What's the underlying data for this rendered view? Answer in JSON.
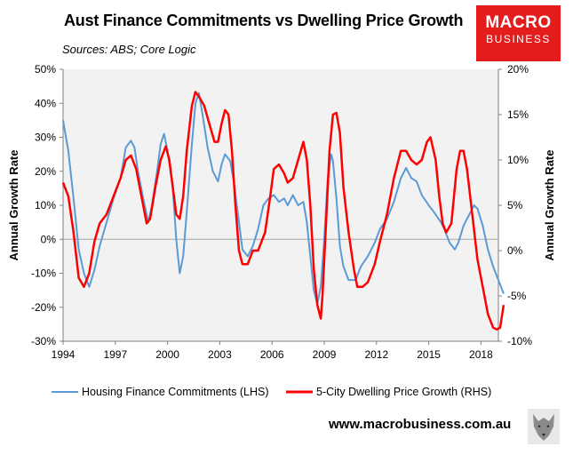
{
  "header": {
    "title": "Aust Finance Commitments vs Dwelling Price Growth",
    "subtitle": "Sources: ABS; Core Logic"
  },
  "logo": {
    "line1": "MACRO",
    "line2": "BUSINESS"
  },
  "footer": {
    "url": "www.macrobusiness.com.au"
  },
  "colors": {
    "finance": "#5b9bd5",
    "prices": "#ff0000",
    "logo_bg": "#e41c1c"
  },
  "chart_data": {
    "type": "line",
    "title": "Aust Finance Commitments vs Dwelling Price Growth",
    "ylabel_left": "Annual Growth Rate",
    "ylabel_right": "Annual Growth Rate",
    "x_range": [
      1994,
      2019
    ],
    "left_axis": {
      "range": [
        -30,
        50
      ],
      "ticks": [
        50,
        40,
        30,
        20,
        10,
        0,
        -10,
        -20,
        -30
      ],
      "tick_labels": [
        "50%",
        "40%",
        "30%",
        "20%",
        "10%",
        "0%",
        "-10%",
        "-20%",
        "-30%"
      ]
    },
    "right_axis": {
      "range": [
        -10,
        20
      ],
      "ticks": [
        20,
        15,
        10,
        5,
        0,
        -5,
        -10
      ],
      "tick_labels": [
        "20%",
        "15%",
        "10%",
        "5%",
        "0%",
        "-5%",
        "-10%"
      ]
    },
    "x_ticks": [
      1994,
      1997,
      2000,
      2003,
      2006,
      2009,
      2012,
      2015,
      2018
    ],
    "x_tick_labels": [
      "1994",
      "1997",
      "2000",
      "2003",
      "2006",
      "2009",
      "2012",
      "2015",
      "2018"
    ],
    "legend": {
      "position": "bottom"
    },
    "series": [
      {
        "name": "Housing Finance Commitments (LHS)",
        "axis": "left",
        "points": [
          [
            1994.0,
            35
          ],
          [
            1994.3,
            26
          ],
          [
            1994.6,
            12
          ],
          [
            1994.9,
            -3
          ],
          [
            1995.2,
            -10
          ],
          [
            1995.5,
            -14
          ],
          [
            1995.8,
            -9
          ],
          [
            1996.1,
            -2
          ],
          [
            1996.5,
            5
          ],
          [
            1996.9,
            12
          ],
          [
            1997.3,
            18
          ],
          [
            1997.6,
            27
          ],
          [
            1997.9,
            29
          ],
          [
            1998.1,
            27
          ],
          [
            1998.3,
            20
          ],
          [
            1998.6,
            12
          ],
          [
            1998.9,
            5
          ],
          [
            1999.1,
            10
          ],
          [
            1999.4,
            20
          ],
          [
            1999.6,
            28
          ],
          [
            1999.8,
            31
          ],
          [
            2000.0,
            26
          ],
          [
            2000.3,
            15
          ],
          [
            2000.5,
            0
          ],
          [
            2000.7,
            -10
          ],
          [
            2000.9,
            -5
          ],
          [
            2001.1,
            8
          ],
          [
            2001.4,
            28
          ],
          [
            2001.6,
            40
          ],
          [
            2001.8,
            43
          ],
          [
            2002.0,
            37
          ],
          [
            2002.3,
            27
          ],
          [
            2002.6,
            20
          ],
          [
            2002.9,
            17
          ],
          [
            2003.1,
            22
          ],
          [
            2003.3,
            25
          ],
          [
            2003.6,
            23
          ],
          [
            2003.8,
            17
          ],
          [
            2004.1,
            5
          ],
          [
            2004.3,
            -3
          ],
          [
            2004.6,
            -5
          ],
          [
            2004.9,
            -2
          ],
          [
            2005.2,
            3
          ],
          [
            2005.5,
            10
          ],
          [
            2005.8,
            12
          ],
          [
            2006.1,
            13
          ],
          [
            2006.4,
            11
          ],
          [
            2006.7,
            12
          ],
          [
            2006.9,
            10
          ],
          [
            2007.2,
            13
          ],
          [
            2007.5,
            10
          ],
          [
            2007.8,
            11
          ],
          [
            2008.0,
            5
          ],
          [
            2008.2,
            -5
          ],
          [
            2008.4,
            -15
          ],
          [
            2008.6,
            -19
          ],
          [
            2008.8,
            -14
          ],
          [
            2009.0,
            0
          ],
          [
            2009.2,
            18
          ],
          [
            2009.4,
            25
          ],
          [
            2009.5,
            23
          ],
          [
            2009.7,
            12
          ],
          [
            2009.9,
            -2
          ],
          [
            2010.1,
            -8
          ],
          [
            2010.4,
            -12
          ],
          [
            2010.8,
            -12
          ],
          [
            2011.1,
            -8
          ],
          [
            2011.5,
            -5
          ],
          [
            2011.9,
            -1
          ],
          [
            2012.2,
            3
          ],
          [
            2012.6,
            6
          ],
          [
            2013.0,
            11
          ],
          [
            2013.4,
            18
          ],
          [
            2013.7,
            21
          ],
          [
            2014.0,
            18
          ],
          [
            2014.3,
            17
          ],
          [
            2014.6,
            13
          ],
          [
            2015.0,
            10
          ],
          [
            2015.3,
            8
          ],
          [
            2015.7,
            5
          ],
          [
            2015.9,
            3
          ],
          [
            2016.2,
            -1
          ],
          [
            2016.5,
            -3
          ],
          [
            2016.7,
            -1
          ],
          [
            2017.0,
            4
          ],
          [
            2017.3,
            7
          ],
          [
            2017.6,
            10
          ],
          [
            2017.8,
            9
          ],
          [
            2018.1,
            4
          ],
          [
            2018.4,
            -3
          ],
          [
            2018.7,
            -8
          ],
          [
            2019.0,
            -12
          ],
          [
            2019.3,
            -16
          ]
        ]
      },
      {
        "name": "5-City Dwelling Price Growth (RHS)",
        "axis": "right",
        "points": [
          [
            1994.0,
            7.5
          ],
          [
            1994.3,
            6
          ],
          [
            1994.6,
            2
          ],
          [
            1994.9,
            -3
          ],
          [
            1995.2,
            -4
          ],
          [
            1995.5,
            -2.5
          ],
          [
            1995.8,
            1
          ],
          [
            1996.1,
            3
          ],
          [
            1996.5,
            4
          ],
          [
            1996.9,
            6
          ],
          [
            1997.3,
            8
          ],
          [
            1997.6,
            10
          ],
          [
            1997.9,
            10.5
          ],
          [
            1998.2,
            9
          ],
          [
            1998.5,
            6
          ],
          [
            1998.8,
            3
          ],
          [
            1999.0,
            3.5
          ],
          [
            1999.3,
            7
          ],
          [
            1999.6,
            10
          ],
          [
            1999.9,
            11.5
          ],
          [
            2000.1,
            10
          ],
          [
            2000.3,
            7
          ],
          [
            2000.5,
            4
          ],
          [
            2000.7,
            3.5
          ],
          [
            2000.9,
            6
          ],
          [
            2001.1,
            11
          ],
          [
            2001.4,
            16
          ],
          [
            2001.6,
            17.5
          ],
          [
            2001.8,
            17
          ],
          [
            2002.1,
            16
          ],
          [
            2002.4,
            14
          ],
          [
            2002.7,
            12
          ],
          [
            2002.9,
            12
          ],
          [
            2003.1,
            14
          ],
          [
            2003.3,
            15.5
          ],
          [
            2003.5,
            15
          ],
          [
            2003.7,
            11
          ],
          [
            2003.9,
            5
          ],
          [
            2004.1,
            0
          ],
          [
            2004.3,
            -1.5
          ],
          [
            2004.6,
            -1.5
          ],
          [
            2004.9,
            0
          ],
          [
            2005.2,
            0
          ],
          [
            2005.6,
            2
          ],
          [
            2005.9,
            6
          ],
          [
            2006.1,
            9
          ],
          [
            2006.4,
            9.5
          ],
          [
            2006.7,
            8.5
          ],
          [
            2006.9,
            7.5
          ],
          [
            2007.2,
            8
          ],
          [
            2007.5,
            10
          ],
          [
            2007.8,
            12
          ],
          [
            2008.0,
            10
          ],
          [
            2008.2,
            5
          ],
          [
            2008.4,
            -2
          ],
          [
            2008.6,
            -6
          ],
          [
            2008.8,
            -7.5
          ],
          [
            2008.9,
            -5
          ],
          [
            2009.1,
            3
          ],
          [
            2009.3,
            11
          ],
          [
            2009.5,
            15
          ],
          [
            2009.7,
            15.2
          ],
          [
            2009.9,
            13
          ],
          [
            2010.1,
            7
          ],
          [
            2010.4,
            2
          ],
          [
            2010.7,
            -2
          ],
          [
            2010.9,
            -4
          ],
          [
            2011.2,
            -4
          ],
          [
            2011.5,
            -3.5
          ],
          [
            2011.9,
            -1.5
          ],
          [
            2012.2,
            1
          ],
          [
            2012.6,
            4
          ],
          [
            2013.0,
            8
          ],
          [
            2013.4,
            11
          ],
          [
            2013.7,
            11
          ],
          [
            2014.0,
            10
          ],
          [
            2014.3,
            9.5
          ],
          [
            2014.6,
            10
          ],
          [
            2014.9,
            12
          ],
          [
            2015.1,
            12.5
          ],
          [
            2015.4,
            10
          ],
          [
            2015.6,
            6
          ],
          [
            2015.8,
            3
          ],
          [
            2016.0,
            2
          ],
          [
            2016.3,
            3
          ],
          [
            2016.6,
            9
          ],
          [
            2016.8,
            11
          ],
          [
            2017.0,
            11
          ],
          [
            2017.2,
            9
          ],
          [
            2017.5,
            4
          ],
          [
            2017.8,
            -1
          ],
          [
            2018.1,
            -4
          ],
          [
            2018.4,
            -7
          ],
          [
            2018.7,
            -8.5
          ],
          [
            2018.9,
            -8.7
          ],
          [
            2019.1,
            -8.5
          ],
          [
            2019.3,
            -6
          ]
        ]
      }
    ]
  }
}
